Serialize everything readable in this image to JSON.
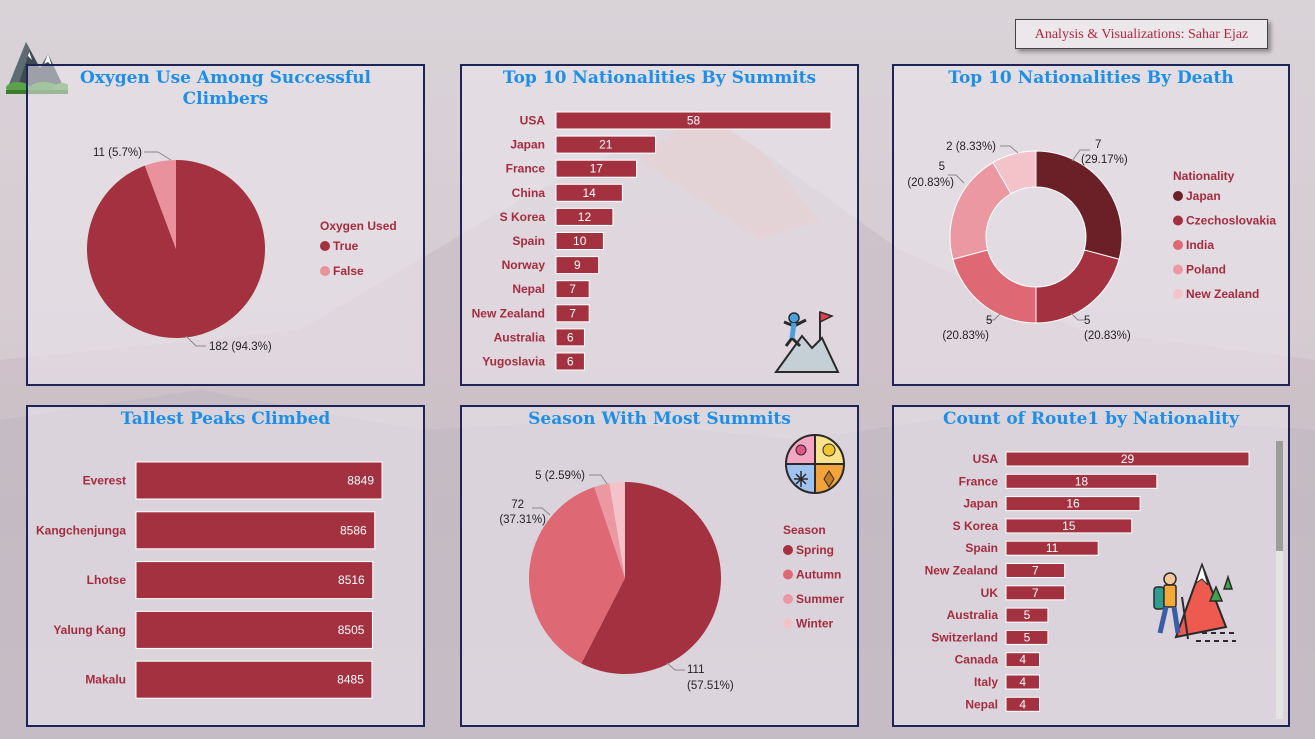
{
  "credit": "Analysis & Visualizations: Sahar Ejaz",
  "colors": {
    "bar": "#a3313f",
    "title": "#1e8fe8",
    "label": "#a42c3e",
    "border": "#1c2458"
  },
  "icons": [
    "mountain-logo-icon",
    "climber-flag-icon",
    "seasons-icon",
    "hiker-icon"
  ],
  "chart_data": [
    {
      "id": "oxygen",
      "type": "pie",
      "title": "Oxygen Use Among Successful Climbers",
      "legend_title": "Oxygen Used",
      "legend_position": "right",
      "slices": [
        {
          "name": "True",
          "value": 182,
          "label": "182 (94.3%)",
          "color": "#a3313f"
        },
        {
          "name": "False",
          "value": 11,
          "label": "11 (5.7%)",
          "color": "#e9919c"
        }
      ]
    },
    {
      "id": "summits",
      "type": "bar",
      "orientation": "horizontal",
      "title": "Top 10 Nationalities By Summits",
      "categories": [
        "USA",
        "Japan",
        "France",
        "China",
        "S Korea",
        "Spain",
        "Norway",
        "Nepal",
        "New Zealand",
        "Australia",
        "Yugoslavia"
      ],
      "values": [
        58,
        21,
        17,
        14,
        12,
        10,
        9,
        7,
        7,
        6,
        6
      ],
      "xlim": [
        0,
        58
      ]
    },
    {
      "id": "deaths",
      "type": "pie",
      "donut": true,
      "title": "Top 10 Nationalities By Death",
      "legend_title": "Nationality",
      "legend_position": "right",
      "slices": [
        {
          "name": "Japan",
          "value": 7,
          "label_value": "7",
          "label_pct": "(29.17%)",
          "color": "#6b1f26"
        },
        {
          "name": "Czechoslovakia",
          "value": 5,
          "label_value": "5",
          "label_pct": "(20.83%)",
          "color": "#a3313f"
        },
        {
          "name": "India",
          "value": 5,
          "label_value": "5",
          "label_pct": "(20.83%)",
          "color": "#de6874"
        },
        {
          "name": "Poland",
          "value": 5,
          "label_value": "5",
          "label_pct": "(20.83%)",
          "color": "#ec98a3"
        },
        {
          "name": "New Zealand",
          "value": 2,
          "label_value": "2",
          "label_pct": "(8.33%)",
          "color": "#f3c3c9"
        }
      ]
    },
    {
      "id": "peaks",
      "type": "bar",
      "orientation": "horizontal",
      "title": "Tallest Peaks Climbed",
      "categories": [
        "Everest",
        "Kangchenjunga",
        "Lhotse",
        "Yalung Kang",
        "Makalu"
      ],
      "values": [
        8849,
        8586,
        8516,
        8505,
        8485
      ],
      "xlim": [
        0,
        8849
      ]
    },
    {
      "id": "season",
      "type": "pie",
      "title": "Season With Most Summits",
      "legend_title": "Season",
      "legend_position": "right",
      "slices": [
        {
          "name": "Spring",
          "value": 111,
          "label_value": "111",
          "label_pct": "(57.51%)",
          "color": "#a3313f"
        },
        {
          "name": "Autumn",
          "value": 72,
          "label_value": "72",
          "label_pct": "(37.31%)",
          "color": "#de6874"
        },
        {
          "name": "Summer",
          "value": 5,
          "label": "5 (2.59%)",
          "color": "#ec98a3"
        },
        {
          "name": "Winter",
          "value": 5,
          "color": "#f3c3c9"
        }
      ]
    },
    {
      "id": "route",
      "type": "bar",
      "orientation": "horizontal",
      "title": "Count of Route1 by Nationality",
      "categories": [
        "USA",
        "France",
        "Japan",
        "S Korea",
        "Spain",
        "New Zealand",
        "UK",
        "Australia",
        "Switzerland",
        "Canada",
        "Italy",
        "Nepal"
      ],
      "values": [
        29,
        18,
        16,
        15,
        11,
        7,
        7,
        5,
        5,
        4,
        4,
        4
      ],
      "xlim": [
        0,
        29
      ]
    }
  ]
}
